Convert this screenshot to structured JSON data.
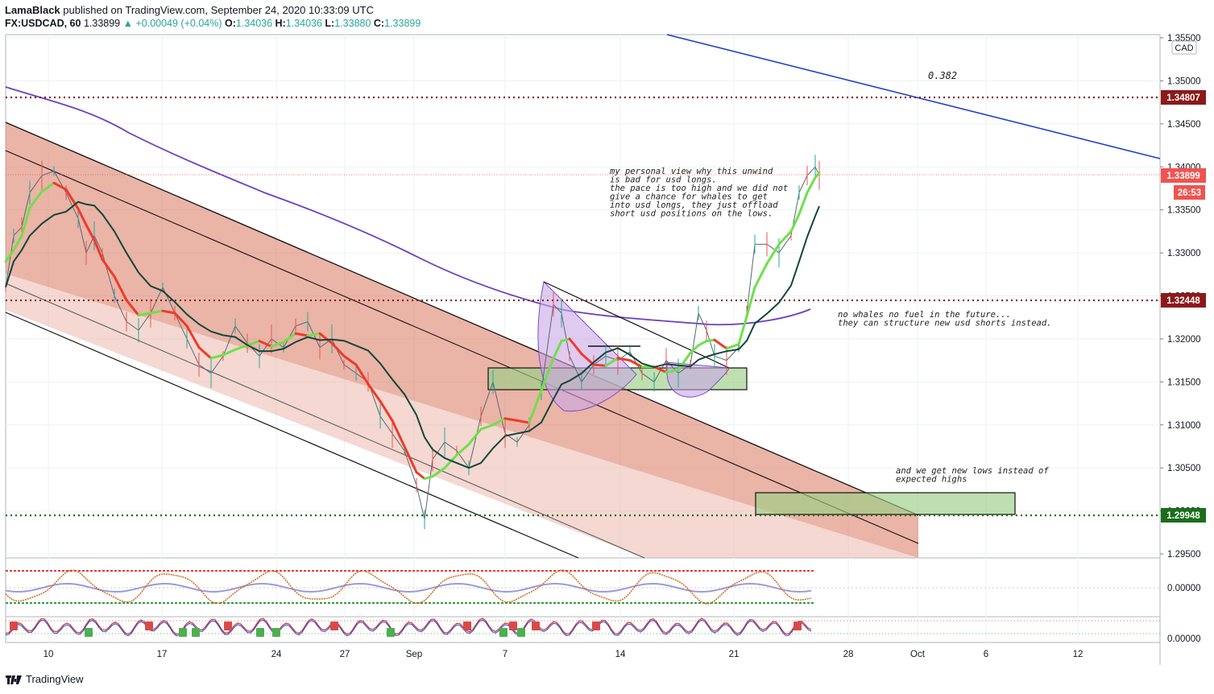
{
  "header": {
    "author": "LamaBlack",
    "published_text": "published on TradingView.com, September 24, 2020 10:33:09 UTC",
    "symbol": "FX:USDCAD, 60",
    "last": "1.33899",
    "change": "▲ +0.00049 (+0.04%)",
    "o_label": "O:",
    "o": "1.34036",
    "h_label": "H:",
    "h": "1.34036",
    "l_label": "L:",
    "l": "1.33880",
    "c_label": "C:",
    "c": "1.33899"
  },
  "footer": {
    "brand": "TradingView"
  },
  "chart_data": {
    "type": "line",
    "currency_label": "CAD",
    "y_axis_ticks": [
      "1.35500",
      "1.35000",
      "1.34500",
      "1.34000",
      "1.33500",
      "1.33000",
      "1.32500",
      "1.32000",
      "1.31500",
      "1.31000",
      "1.30500",
      "1.30000",
      "1.29500"
    ],
    "x_axis_ticks": [
      "10",
      "17",
      "24",
      "27",
      "Sep",
      "7",
      "14",
      "21",
      "28",
      "Oct",
      "6",
      "12"
    ],
    "price_tags": [
      {
        "value": "1.34807",
        "color": "#8b1a1a"
      },
      {
        "value": "1.33899",
        "color": "#ef5350"
      },
      {
        "value": "26:53",
        "color": "#ef5350"
      },
      {
        "value": "1.32448",
        "color": "#8b1a1a"
      },
      {
        "value": "1.29948",
        "color": "#1b6e1b"
      }
    ],
    "horizontal_levels": [
      1.34807,
      1.32448,
      1.29948
    ],
    "fib_label": "0.382",
    "annotations": [
      [
        "my personal view why this unwind",
        "is bad for usd longs.",
        "the pace is too high and we did not",
        "give a chance for whales to get",
        "into usd longs, they just offload",
        "short usd positions on the lows."
      ],
      [
        "no whales no fuel in the future...",
        "they can structure new usd shorts instead."
      ],
      [
        "and we get new lows instead of",
        "expected highs"
      ]
    ],
    "osc1_tick": "0.00000",
    "osc2_tick": "0.00000",
    "price_series": [
      [
        0,
        1.326
      ],
      [
        10,
        1.332
      ],
      [
        20,
        1.333
      ],
      [
        30,
        1.337
      ],
      [
        45,
        1.339
      ],
      [
        60,
        1.3395
      ],
      [
        75,
        1.337
      ],
      [
        90,
        1.334
      ],
      [
        100,
        1.33
      ],
      [
        110,
        1.332
      ],
      [
        120,
        1.33
      ],
      [
        135,
        1.325
      ],
      [
        150,
        1.322
      ],
      [
        165,
        1.321
      ],
      [
        180,
        1.323
      ],
      [
        195,
        1.326
      ],
      [
        210,
        1.323
      ],
      [
        225,
        1.32
      ],
      [
        240,
        1.317
      ],
      [
        255,
        1.316
      ],
      [
        270,
        1.318
      ],
      [
        285,
        1.3215
      ],
      [
        300,
        1.3195
      ],
      [
        315,
        1.318
      ],
      [
        330,
        1.32
      ],
      [
        345,
        1.319
      ],
      [
        360,
        1.3215
      ],
      [
        375,
        1.322
      ],
      [
        390,
        1.319
      ],
      [
        405,
        1.32
      ],
      [
        420,
        1.317
      ],
      [
        435,
        1.316
      ],
      [
        450,
        1.315
      ],
      [
        465,
        1.311
      ],
      [
        480,
        1.309
      ],
      [
        495,
        1.307
      ],
      [
        510,
        1.303
      ],
      [
        520,
        1.299
      ],
      [
        530,
        1.306
      ],
      [
        545,
        1.308
      ],
      [
        560,
        1.307
      ],
      [
        575,
        1.305
      ],
      [
        590,
        1.311
      ],
      [
        605,
        1.315
      ],
      [
        620,
        1.309
      ],
      [
        635,
        1.308
      ],
      [
        650,
        1.31
      ],
      [
        665,
        1.314
      ],
      [
        680,
        1.324
      ],
      [
        690,
        1.323
      ],
      [
        700,
        1.318
      ],
      [
        715,
        1.315
      ],
      [
        730,
        1.317
      ],
      [
        745,
        1.318
      ],
      [
        760,
        1.3175
      ],
      [
        775,
        1.3185
      ],
      [
        790,
        1.316
      ],
      [
        805,
        1.315
      ],
      [
        820,
        1.3175
      ],
      [
        835,
        1.316
      ],
      [
        850,
        1.317
      ],
      [
        860,
        1.323
      ],
      [
        870,
        1.321
      ],
      [
        880,
        1.318
      ],
      [
        895,
        1.3175
      ],
      [
        910,
        1.319
      ],
      [
        920,
        1.323
      ],
      [
        930,
        1.331
      ],
      [
        945,
        1.331
      ],
      [
        960,
        1.33
      ],
      [
        975,
        1.332
      ],
      [
        985,
        1.337
      ],
      [
        995,
        1.339
      ],
      [
        1005,
        1.34
      ],
      [
        1010,
        1.339
      ]
    ]
  }
}
